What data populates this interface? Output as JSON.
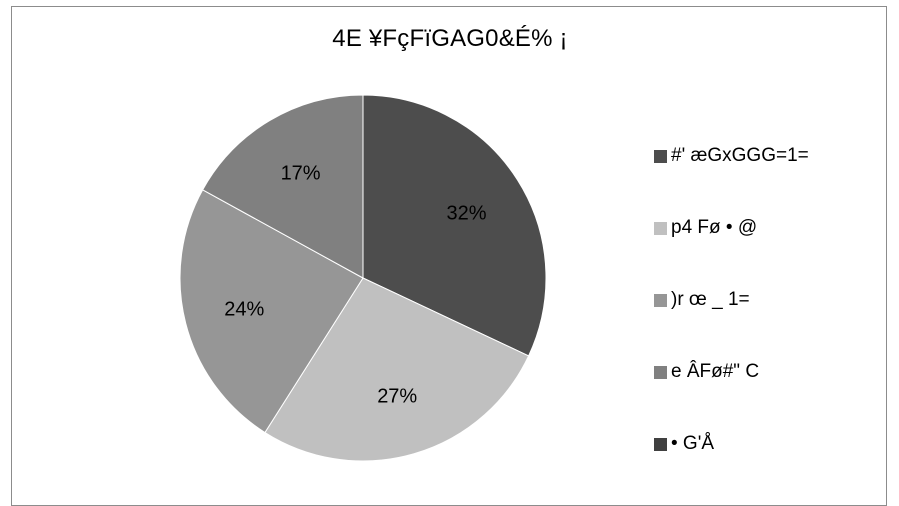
{
  "chart_data": {
    "type": "pie",
    "title": "4E ¥FçFïGAG0&É% ¡",
    "categories": [
      "#' æGxGGG=1=",
      "p4 Fø • @",
      ")r œ _  1=",
      "e ÂFø#\" C",
      "• G'Å"
    ],
    "values": [
      32,
      27,
      24,
      17,
      0
    ],
    "value_labels": [
      "32%",
      "27%",
      "24%",
      "17%",
      ""
    ],
    "colors": [
      "#4d4d4d",
      "#c0c0c0",
      "#969696",
      "#808080",
      "#404040"
    ],
    "legend_position": "right",
    "start_angle_deg": 0,
    "direction": "clockwise"
  }
}
